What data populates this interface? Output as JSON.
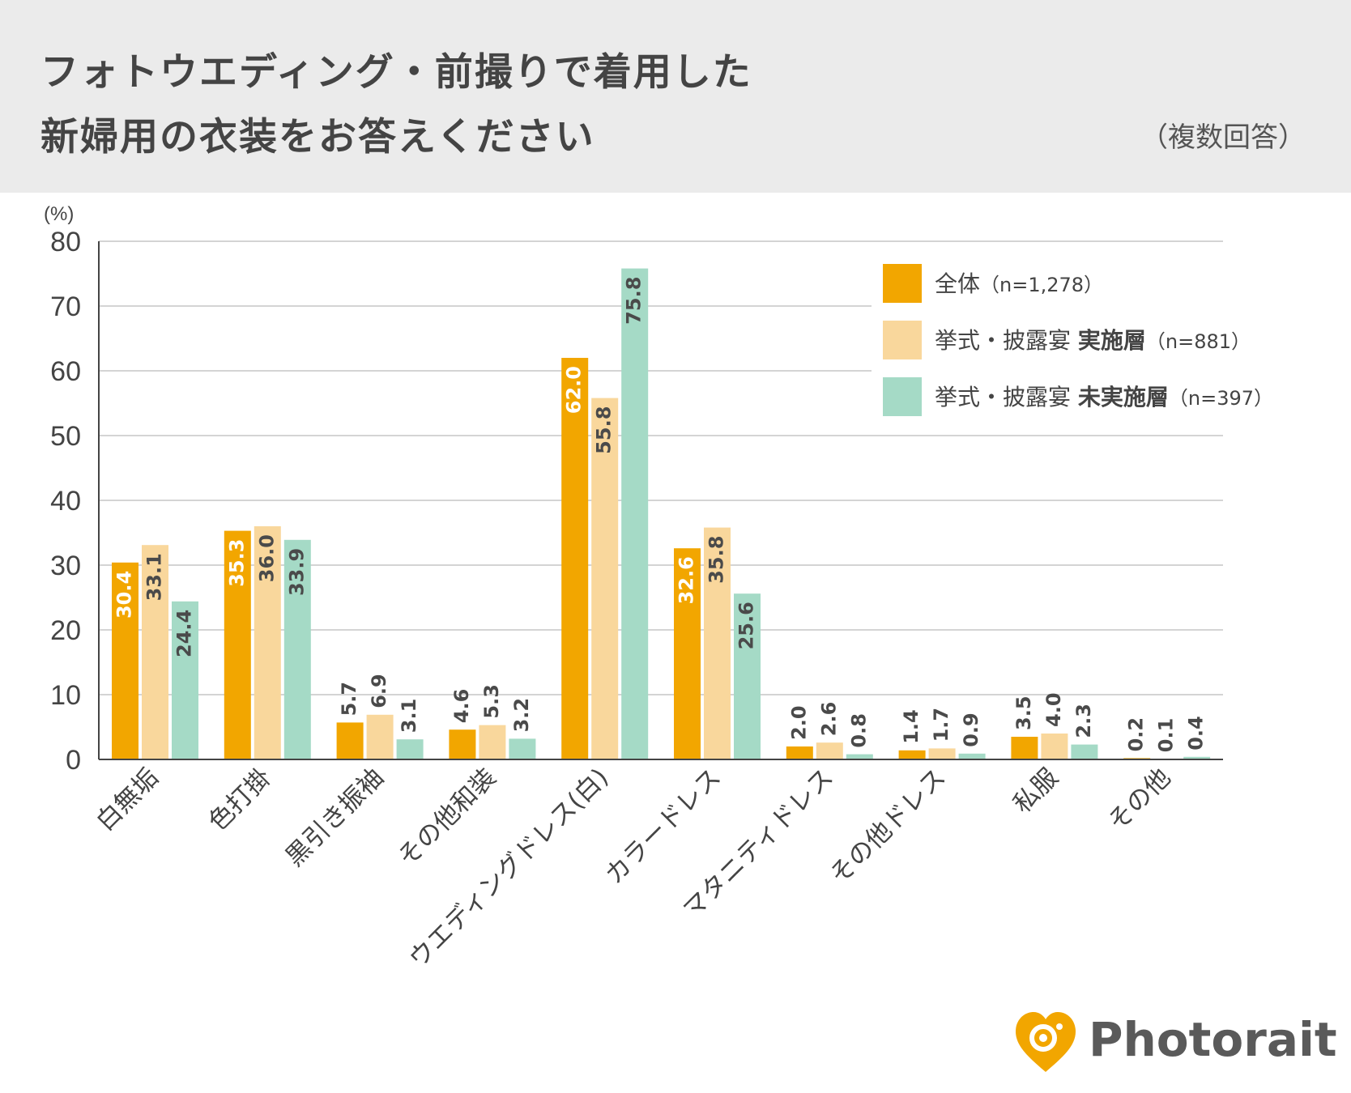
{
  "header": {
    "title_line1": "フォトウエディング・前撮りで着用した",
    "title_line2": "新婦用の衣装をお答えください",
    "note": "（複数回答）"
  },
  "chart_data": {
    "type": "bar",
    "unit_label": "(%)",
    "ylim": [
      0,
      80
    ],
    "yticks": [
      0,
      10,
      20,
      30,
      40,
      50,
      60,
      70,
      80
    ],
    "grid": true,
    "legend_position": "top-right",
    "categories": [
      "白無垢",
      "色打掛",
      "黒引き振袖",
      "その他和装",
      "ウエディングドレス(白)",
      "カラードレス",
      "マタニティドレス",
      "その他ドレス",
      "私服",
      "その他"
    ],
    "series": [
      {
        "name": "全体",
        "name_sub": "（n=1,278）",
        "color": "#f2a600",
        "label_color": "#ffffff",
        "values": [
          30.4,
          35.3,
          5.7,
          4.6,
          62.0,
          32.6,
          2.0,
          1.4,
          3.5,
          0.2
        ]
      },
      {
        "name": "挙式・披露宴 実施層",
        "name_plain": "挙式・披露宴",
        "name_strong": "実施層",
        "name_sub": "（n=881）",
        "color": "#f9d79c",
        "label_color": "#4a4a4a",
        "values": [
          33.1,
          36.0,
          6.9,
          5.3,
          55.8,
          35.8,
          2.6,
          1.7,
          4.0,
          0.1
        ]
      },
      {
        "name": "挙式・披露宴 未実施層",
        "name_plain": "挙式・披露宴",
        "name_strong": "未実施層",
        "name_sub": "（n=397）",
        "color": "#a5dac6",
        "label_color": "#4a4a4a",
        "values": [
          24.4,
          33.9,
          3.1,
          3.2,
          75.8,
          25.6,
          0.8,
          0.9,
          2.3,
          0.4
        ]
      }
    ]
  },
  "logo": {
    "icon": "heart-camera-icon",
    "text": "Photorait",
    "color": "#f2a600"
  }
}
